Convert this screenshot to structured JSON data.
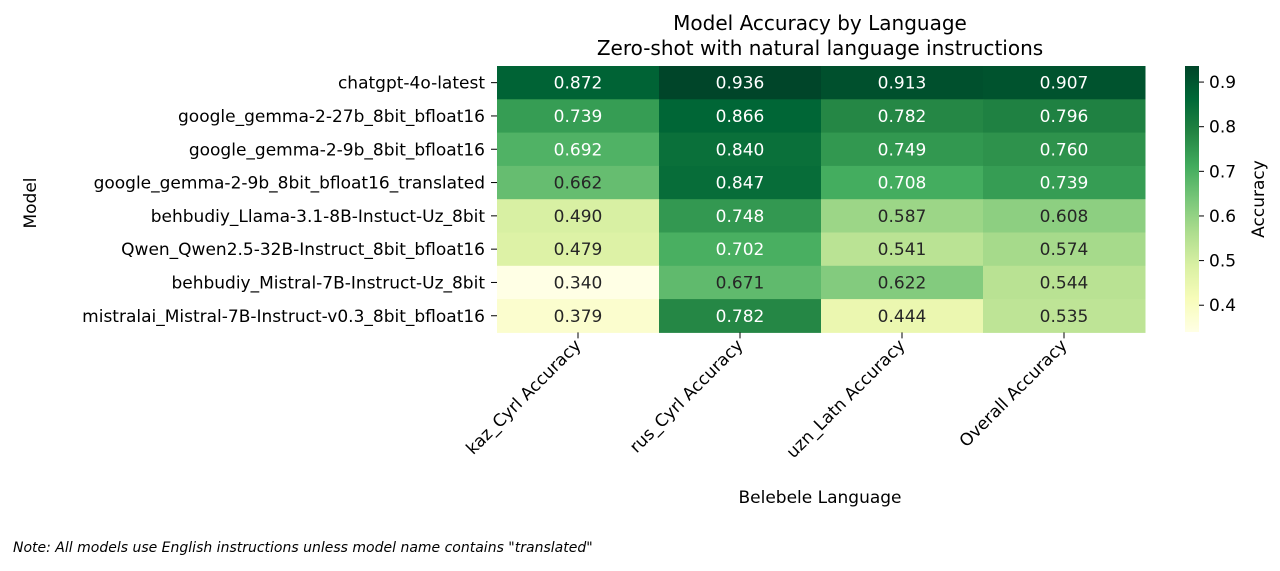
{
  "chart_data": {
    "type": "heatmap",
    "title": "Model Accuracy by Language",
    "subtitle": "Zero-shot with natural language instructions",
    "xlabel": "Belebele Language",
    "ylabel": "Model",
    "columns": [
      "kaz_Cyrl Accuracy",
      "rus_Cyrl Accuracy",
      "uzn_Latn Accuracy",
      "Overall Accuracy"
    ],
    "rows": [
      "chatgpt-4o-latest",
      "google_gemma-2-27b_8bit_bfloat16",
      "google_gemma-2-9b_8bit_bfloat16",
      "google_gemma-2-9b_8bit_bfloat16_translated",
      "behbudiy_Llama-3.1-8B-Instuct-Uz_8bit",
      "Qwen_Qwen2.5-32B-Instruct_8bit_bfloat16",
      "behbudiy_Mistral-7B-Instruct-Uz_8bit",
      "mistralai_Mistral-7B-Instruct-v0.3_8bit_bfloat16"
    ],
    "values": [
      [
        0.872,
        0.936,
        0.913,
        0.907
      ],
      [
        0.739,
        0.866,
        0.782,
        0.796
      ],
      [
        0.692,
        0.84,
        0.749,
        0.76
      ],
      [
        0.662,
        0.847,
        0.708,
        0.739
      ],
      [
        0.49,
        0.748,
        0.587,
        0.608
      ],
      [
        0.479,
        0.702,
        0.541,
        0.574
      ],
      [
        0.34,
        0.671,
        0.622,
        0.544
      ],
      [
        0.379,
        0.782,
        0.444,
        0.535
      ]
    ],
    "value_labels": [
      [
        "0.872",
        "0.936",
        "0.913",
        "0.907"
      ],
      [
        "0.739",
        "0.866",
        "0.782",
        "0.796"
      ],
      [
        "0.692",
        "0.840",
        "0.749",
        "0.760"
      ],
      [
        "0.662",
        "0.847",
        "0.708",
        "0.739"
      ],
      [
        "0.490",
        "0.748",
        "0.587",
        "0.608"
      ],
      [
        "0.479",
        "0.702",
        "0.541",
        "0.574"
      ],
      [
        "0.340",
        "0.671",
        "0.622",
        "0.544"
      ],
      [
        "0.379",
        "0.782",
        "0.444",
        "0.535"
      ]
    ],
    "colorbar": {
      "label": "Accuracy",
      "range": [
        0.34,
        0.936
      ],
      "ticks": [
        0.4,
        0.5,
        0.6,
        0.7,
        0.8,
        0.9
      ],
      "tick_labels": [
        "0.4",
        "0.5",
        "0.6",
        "0.7",
        "0.8",
        "0.9"
      ],
      "colormap": "YlGn",
      "colormap_stops": [
        "#ffffe5",
        "#f7fcb9",
        "#d9f0a3",
        "#addd8e",
        "#78c679",
        "#41ab5d",
        "#238443",
        "#006837",
        "#004529"
      ]
    }
  },
  "note": "Note: All models use English instructions unless model name contains \"translated\""
}
